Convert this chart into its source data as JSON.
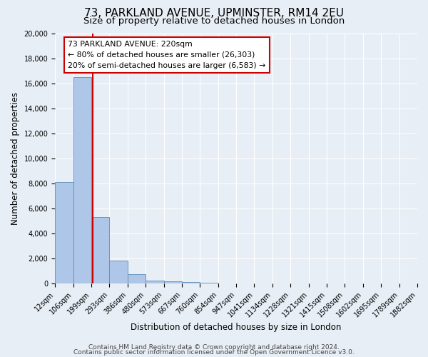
{
  "title": "73, PARKLAND AVENUE, UPMINSTER, RM14 2EU",
  "subtitle": "Size of property relative to detached houses in London",
  "xlabel": "Distribution of detached houses by size in London",
  "ylabel": "Number of detached properties",
  "bin_edges": [
    "12sqm",
    "106sqm",
    "199sqm",
    "293sqm",
    "386sqm",
    "480sqm",
    "573sqm",
    "667sqm",
    "760sqm",
    "854sqm",
    "947sqm",
    "1041sqm",
    "1134sqm",
    "1228sqm",
    "1321sqm",
    "1415sqm",
    "1508sqm",
    "1602sqm",
    "1695sqm",
    "1789sqm",
    "1882sqm"
  ],
  "bar_heights": [
    8100,
    16500,
    5300,
    1850,
    750,
    280,
    200,
    120,
    90,
    50,
    0,
    0,
    0,
    0,
    0,
    0,
    0,
    0,
    0,
    0
  ],
  "bar_color": "#aec6e8",
  "bar_edge_color": "#5b8db8",
  "vline_x": 2.09,
  "vline_color": "#cc0000",
  "annotation_box_text": "73 PARKLAND AVENUE: 220sqm\n← 80% of detached houses are smaller (26,303)\n20% of semi-detached houses are larger (6,583) →",
  "ylim": [
    0,
    20000
  ],
  "yticks": [
    0,
    2000,
    4000,
    6000,
    8000,
    10000,
    12000,
    14000,
    16000,
    18000,
    20000
  ],
  "footer_line1": "Contains HM Land Registry data © Crown copyright and database right 2024.",
  "footer_line2": "Contains public sector information licensed under the Open Government Licence v3.0.",
  "bg_color": "#e8eef5",
  "plot_bg_color": "#e8eef5",
  "title_fontsize": 11,
  "subtitle_fontsize": 9.5,
  "axis_label_fontsize": 8.5,
  "tick_fontsize": 7,
  "footer_fontsize": 6.5
}
